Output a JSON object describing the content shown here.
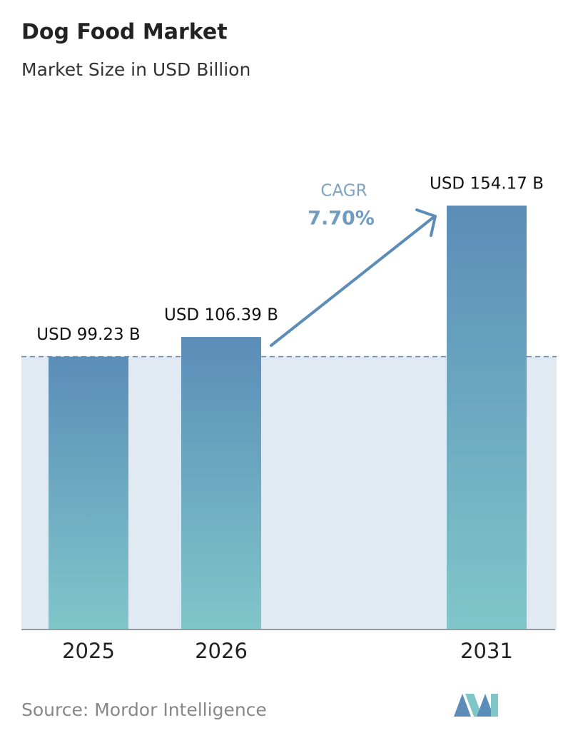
{
  "chart_data": {
    "type": "bar",
    "title": "Dog Food Market",
    "subtitle": "Market Size in USD Billion",
    "categories": [
      "2025",
      "2026",
      "2031"
    ],
    "values": [
      99.23,
      106.39,
      154.17
    ],
    "value_labels": [
      "USD 99.23 B",
      "USD 106.39 B",
      "USD 154.17 B"
    ],
    "annotations": [
      "CAGR",
      "7.70%"
    ],
    "source": "Source:  Mordor Intelligence",
    "colors": [
      "#5b8db8",
      "#80c6c9"
    ]
  }
}
